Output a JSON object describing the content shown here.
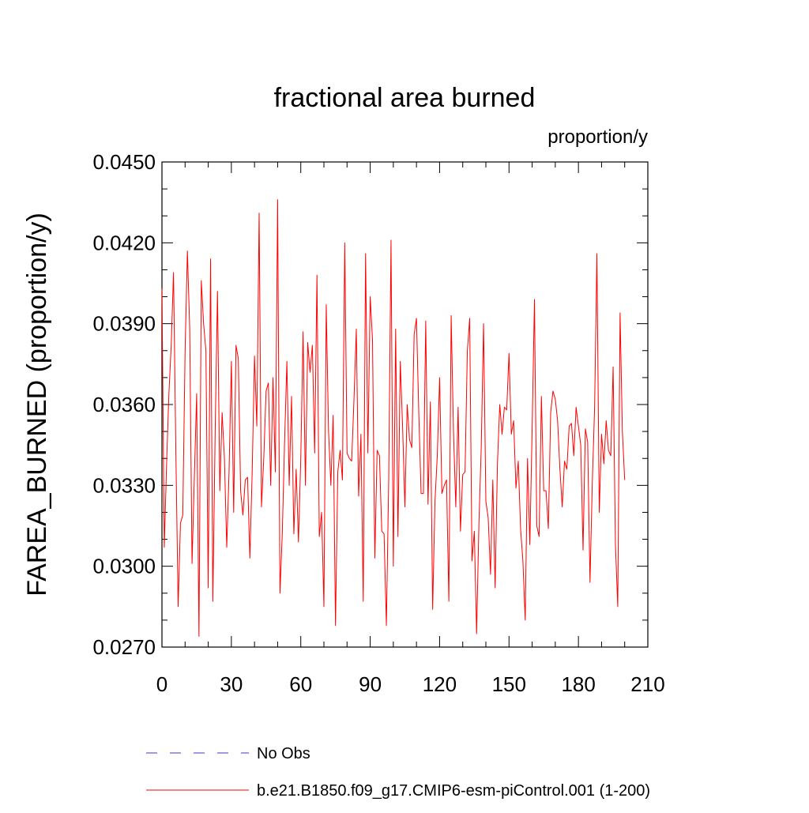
{
  "chart_data": {
    "type": "line",
    "title": "fractional area burned",
    "units_label": "proportion/y",
    "ylabel": "FAREA_BURNED  (proportion/y)",
    "xlabel": "",
    "xlim": [
      0,
      210
    ],
    "ylim": [
      0.027,
      0.045
    ],
    "x_ticks": [
      0,
      30,
      60,
      90,
      120,
      150,
      180,
      210
    ],
    "x_tick_labels": [
      "0",
      "30",
      "60",
      "90",
      "120",
      "150",
      "180",
      "210"
    ],
    "y_ticks": [
      0.027,
      0.03,
      0.033,
      0.036,
      0.039,
      0.042,
      0.045
    ],
    "y_tick_labels": [
      "0.0270",
      "0.0300",
      "0.0330",
      "0.0360",
      "0.0390",
      "0.0420",
      "0.0450"
    ],
    "grid": false,
    "legend_position": "bottom",
    "colors": {
      "series": "#ff0000",
      "obs": "#6a5acd"
    },
    "legend": [
      {
        "name": "No Obs",
        "style": "dashed",
        "color": "#6a5acd"
      },
      {
        "name": "b.e21.B1850.f09_g17.CMIP6-esm-piControl.001 (1-200)",
        "style": "solid",
        "color": "#ff0000"
      }
    ],
    "series": [
      {
        "name": "b.e21.B1850.f09_g17.CMIP6-esm-piControl.001 (1-200)",
        "x_start": 0,
        "x_step": 1,
        "values": [
          0.0403,
          0.0307,
          0.0338,
          0.0364,
          0.0382,
          0.0409,
          0.0343,
          0.0285,
          0.0316,
          0.0319,
          0.038,
          0.0417,
          0.0388,
          0.0301,
          0.0333,
          0.0364,
          0.0274,
          0.0406,
          0.039,
          0.038,
          0.0292,
          0.0414,
          0.0287,
          0.035,
          0.0402,
          0.0328,
          0.0357,
          0.034,
          0.0307,
          0.0335,
          0.0376,
          0.032,
          0.0382,
          0.0377,
          0.0328,
          0.0319,
          0.0332,
          0.0333,
          0.0303,
          0.0335,
          0.0378,
          0.0352,
          0.0431,
          0.0322,
          0.034,
          0.0365,
          0.0368,
          0.033,
          0.037,
          0.0335,
          0.0436,
          0.029,
          0.0312,
          0.0346,
          0.0376,
          0.033,
          0.0363,
          0.0312,
          0.0336,
          0.0309,
          0.034,
          0.0387,
          0.033,
          0.0383,
          0.0372,
          0.0382,
          0.0342,
          0.0408,
          0.0311,
          0.032,
          0.0285,
          0.0397,
          0.035,
          0.033,
          0.0356,
          0.0278,
          0.0335,
          0.0343,
          0.0332,
          0.042,
          0.0342,
          0.034,
          0.0339,
          0.0362,
          0.0388,
          0.0326,
          0.0349,
          0.0287,
          0.0416,
          0.0342,
          0.04,
          0.0384,
          0.0303,
          0.0343,
          0.0341,
          0.0313,
          0.0312,
          0.0278,
          0.0332,
          0.0421,
          0.03,
          0.0388,
          0.0311,
          0.0376,
          0.0352,
          0.0322,
          0.036,
          0.0347,
          0.0344,
          0.0386,
          0.0392,
          0.0357,
          0.0327,
          0.0327,
          0.0391,
          0.0323,
          0.0361,
          0.0284,
          0.0324,
          0.0341,
          0.037,
          0.0327,
          0.033,
          0.0332,
          0.0287,
          0.0393,
          0.035,
          0.0322,
          0.0359,
          0.0313,
          0.0334,
          0.0335,
          0.038,
          0.0392,
          0.0302,
          0.0313,
          0.0275,
          0.0316,
          0.0344,
          0.039,
          0.0324,
          0.0318,
          0.0297,
          0.0332,
          0.0292,
          0.0338,
          0.036,
          0.0349,
          0.0359,
          0.0358,
          0.0379,
          0.0349,
          0.0354,
          0.0329,
          0.0339,
          0.0314,
          0.0302,
          0.028,
          0.034,
          0.0308,
          0.0351,
          0.0399,
          0.0315,
          0.0311,
          0.0363,
          0.0328,
          0.0328,
          0.0314,
          0.0357,
          0.0365,
          0.0362,
          0.0354,
          0.0336,
          0.0322,
          0.0339,
          0.0336,
          0.0352,
          0.0353,
          0.0341,
          0.0359,
          0.0352,
          0.0345,
          0.0306,
          0.0351,
          0.0346,
          0.0294,
          0.0331,
          0.0359,
          0.0416,
          0.032,
          0.0349,
          0.0338,
          0.0354,
          0.0343,
          0.0341,
          0.0374,
          0.0308,
          0.0285,
          0.0394,
          0.035,
          0.0332
        ]
      }
    ]
  }
}
